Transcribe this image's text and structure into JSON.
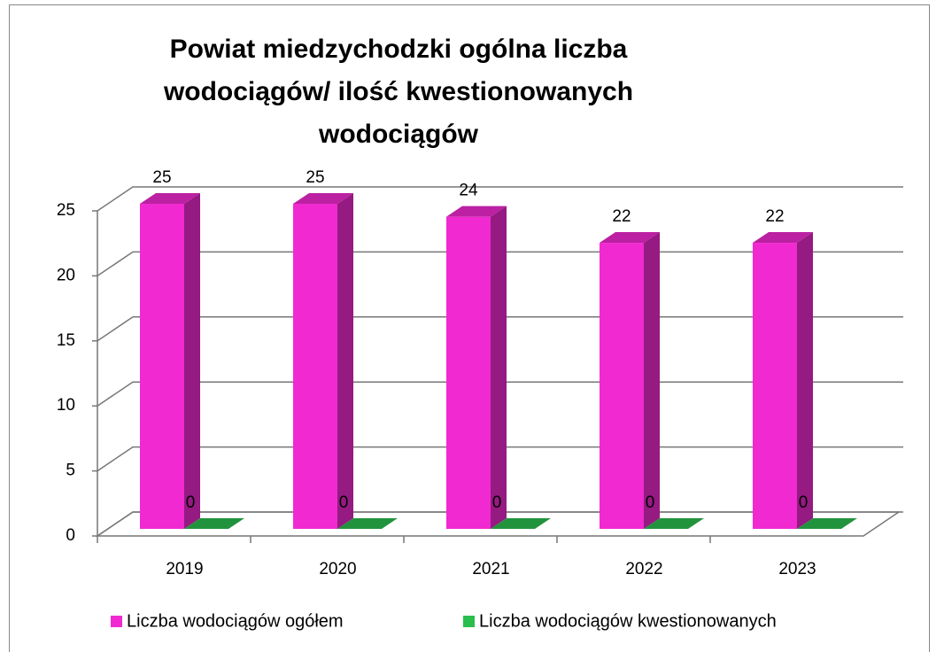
{
  "chart_data": {
    "type": "bar3d",
    "title": "Powiat miedzychodzki ogólna liczba wodociągów/ ilość kwestionowanych wodociągów",
    "categories": [
      "2019",
      "2020",
      "2021",
      "2022",
      "2023"
    ],
    "series": [
      {
        "name": "Liczba wodociągów ogółem",
        "color": "#f02ad0",
        "values": [
          25,
          25,
          24,
          22,
          22
        ]
      },
      {
        "name": "Liczba wodociągów kwestionowanych",
        "color": "#2bbd4e",
        "values": [
          0,
          0,
          0,
          0,
          0
        ]
      }
    ],
    "ylim": [
      0,
      25
    ],
    "yticks": [
      0,
      5,
      10,
      15,
      20,
      25
    ],
    "grid": true,
    "legend": "bottom"
  }
}
